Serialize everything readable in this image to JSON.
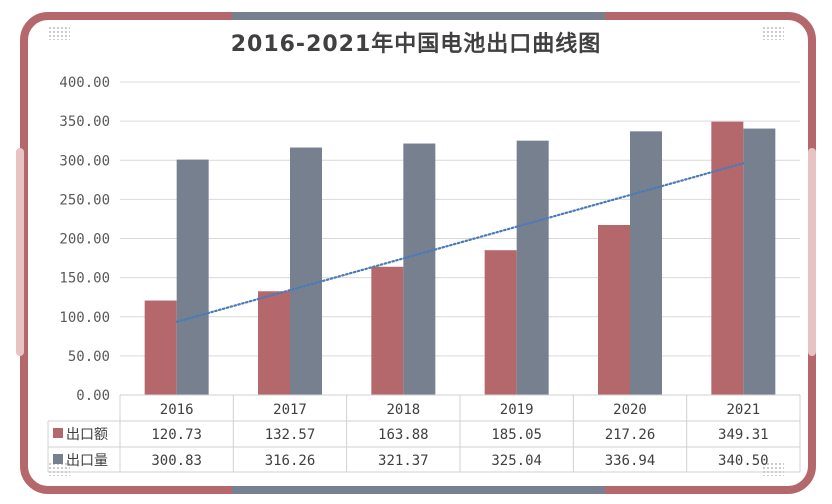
{
  "chart_data": {
    "type": "bar",
    "title": "2016-2021年中国电池出口曲线图",
    "categories": [
      "2016",
      "2017",
      "2018",
      "2019",
      "2020",
      "2021"
    ],
    "series": [
      {
        "name": "出口额",
        "color": "#b5686c",
        "values": [
          120.73,
          132.57,
          163.88,
          185.05,
          217.26,
          349.31
        ],
        "labels": [
          "120.73",
          "132.57",
          "163.88",
          "185.05",
          "217.26",
          "349.31"
        ]
      },
      {
        "name": "出口量",
        "color": "#77808f",
        "values": [
          300.83,
          316.26,
          321.37,
          325.04,
          336.94,
          340.5
        ],
        "labels": [
          "300.83",
          "316.26",
          "321.37",
          "325.04",
          "336.94",
          "340.50"
        ]
      }
    ],
    "trendline": {
      "series": "出口额",
      "type": "linear",
      "style": "dotted",
      "color": "#4a7ab8"
    },
    "ylim": [
      0,
      400
    ],
    "yticks": [
      "0.00",
      "50.00",
      "100.00",
      "150.00",
      "200.00",
      "250.00",
      "300.00",
      "350.00",
      "400.00"
    ],
    "grid": true,
    "legend": "data-table"
  },
  "colors": {
    "frame": "#b5686c",
    "frame_accent": "#77808f",
    "side_tab": "#e8c3c3"
  }
}
